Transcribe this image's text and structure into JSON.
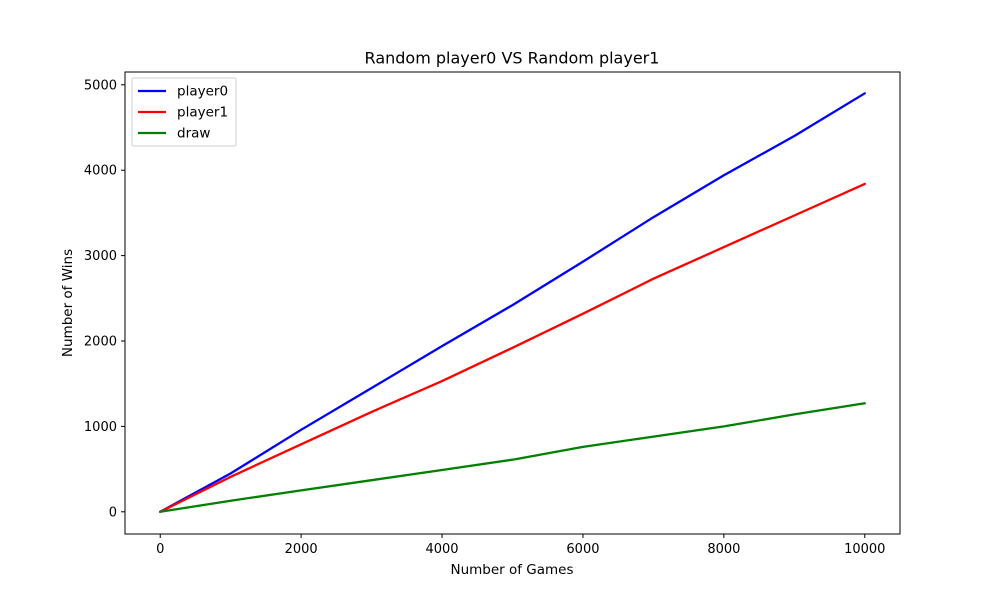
{
  "chart_data": {
    "type": "line",
    "title": "Random player0 VS Random player1",
    "xlabel": "Number of Games",
    "ylabel": "Number of Wins",
    "xlim": [
      -500,
      10500
    ],
    "ylim": [
      -260,
      5150
    ],
    "x_ticks": [
      0,
      2000,
      4000,
      6000,
      8000,
      10000
    ],
    "x_tick_labels": [
      "0",
      "2000",
      "4000",
      "6000",
      "8000",
      "10000"
    ],
    "y_ticks": [
      0,
      1000,
      2000,
      3000,
      4000,
      5000
    ],
    "y_tick_labels": [
      "0",
      "1000",
      "2000",
      "3000",
      "4000",
      "5000"
    ],
    "grid": false,
    "legend_position": "top-left",
    "x": [
      0,
      1000,
      2000,
      3000,
      4000,
      5000,
      6000,
      7000,
      8000,
      9000,
      10000
    ],
    "series": [
      {
        "name": "player0",
        "color": "#0000ff",
        "values": [
          0,
          450,
          960,
          1450,
          1940,
          2420,
          2930,
          3450,
          3940,
          4400,
          4900
        ]
      },
      {
        "name": "player1",
        "color": "#ff0000",
        "values": [
          0,
          410,
          790,
          1170,
          1530,
          1920,
          2320,
          2730,
          3100,
          3470,
          3840
        ]
      },
      {
        "name": "draw",
        "color": "#008000",
        "values": [
          0,
          130,
          250,
          370,
          490,
          610,
          760,
          880,
          1000,
          1140,
          1270
        ]
      }
    ]
  }
}
